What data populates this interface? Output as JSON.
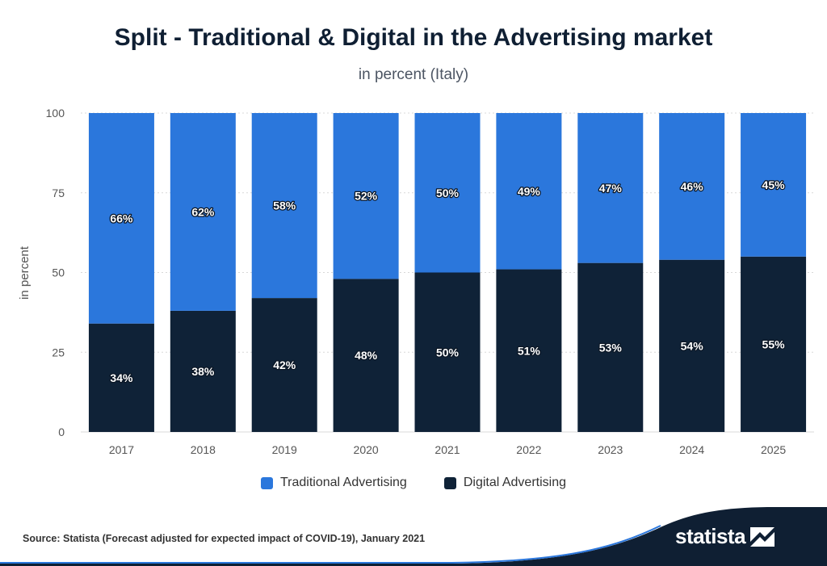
{
  "header": {
    "title": "Split - Traditional & Digital in the Advertising market",
    "subtitle": "in percent (Italy)"
  },
  "chart_data": {
    "type": "bar",
    "stacked": true,
    "categories": [
      "2017",
      "2018",
      "2019",
      "2020",
      "2021",
      "2022",
      "2023",
      "2024",
      "2025"
    ],
    "series": [
      {
        "name": "Digital Advertising",
        "values": [
          34,
          38,
          42,
          48,
          50,
          51,
          53,
          54,
          55
        ],
        "labels": [
          "34%",
          "38%",
          "42%",
          "48%",
          "50%",
          "51%",
          "53%",
          "54%",
          "55%"
        ],
        "color": "#0f2237"
      },
      {
        "name": "Traditional Advertising",
        "values": [
          66,
          62,
          58,
          52,
          50,
          49,
          47,
          46,
          45
        ],
        "labels": [
          "66%",
          "62%",
          "58%",
          "52%",
          "50%",
          "49%",
          "47%",
          "46%",
          "45%"
        ],
        "color": "#2b77dc"
      }
    ],
    "ylabel": "in percent",
    "ylim": [
      0,
      100
    ],
    "yticks": [
      0,
      25,
      50,
      75,
      100
    ],
    "ytick_labels": [
      "0",
      "25",
      "50",
      "75",
      "100"
    ],
    "grid": true,
    "legend_placement": "bottom"
  },
  "legend": {
    "traditional_label": "Traditional Advertising",
    "digital_label": "Digital Advertising"
  },
  "footer": {
    "source": "Source: Statista (Forecast adjusted for expected impact of COVID-19), January 2021",
    "logo_text": "statista"
  },
  "colors": {
    "traditional": "#2b77dc",
    "digital": "#0f2237",
    "footer_band": "#0f1f33"
  }
}
